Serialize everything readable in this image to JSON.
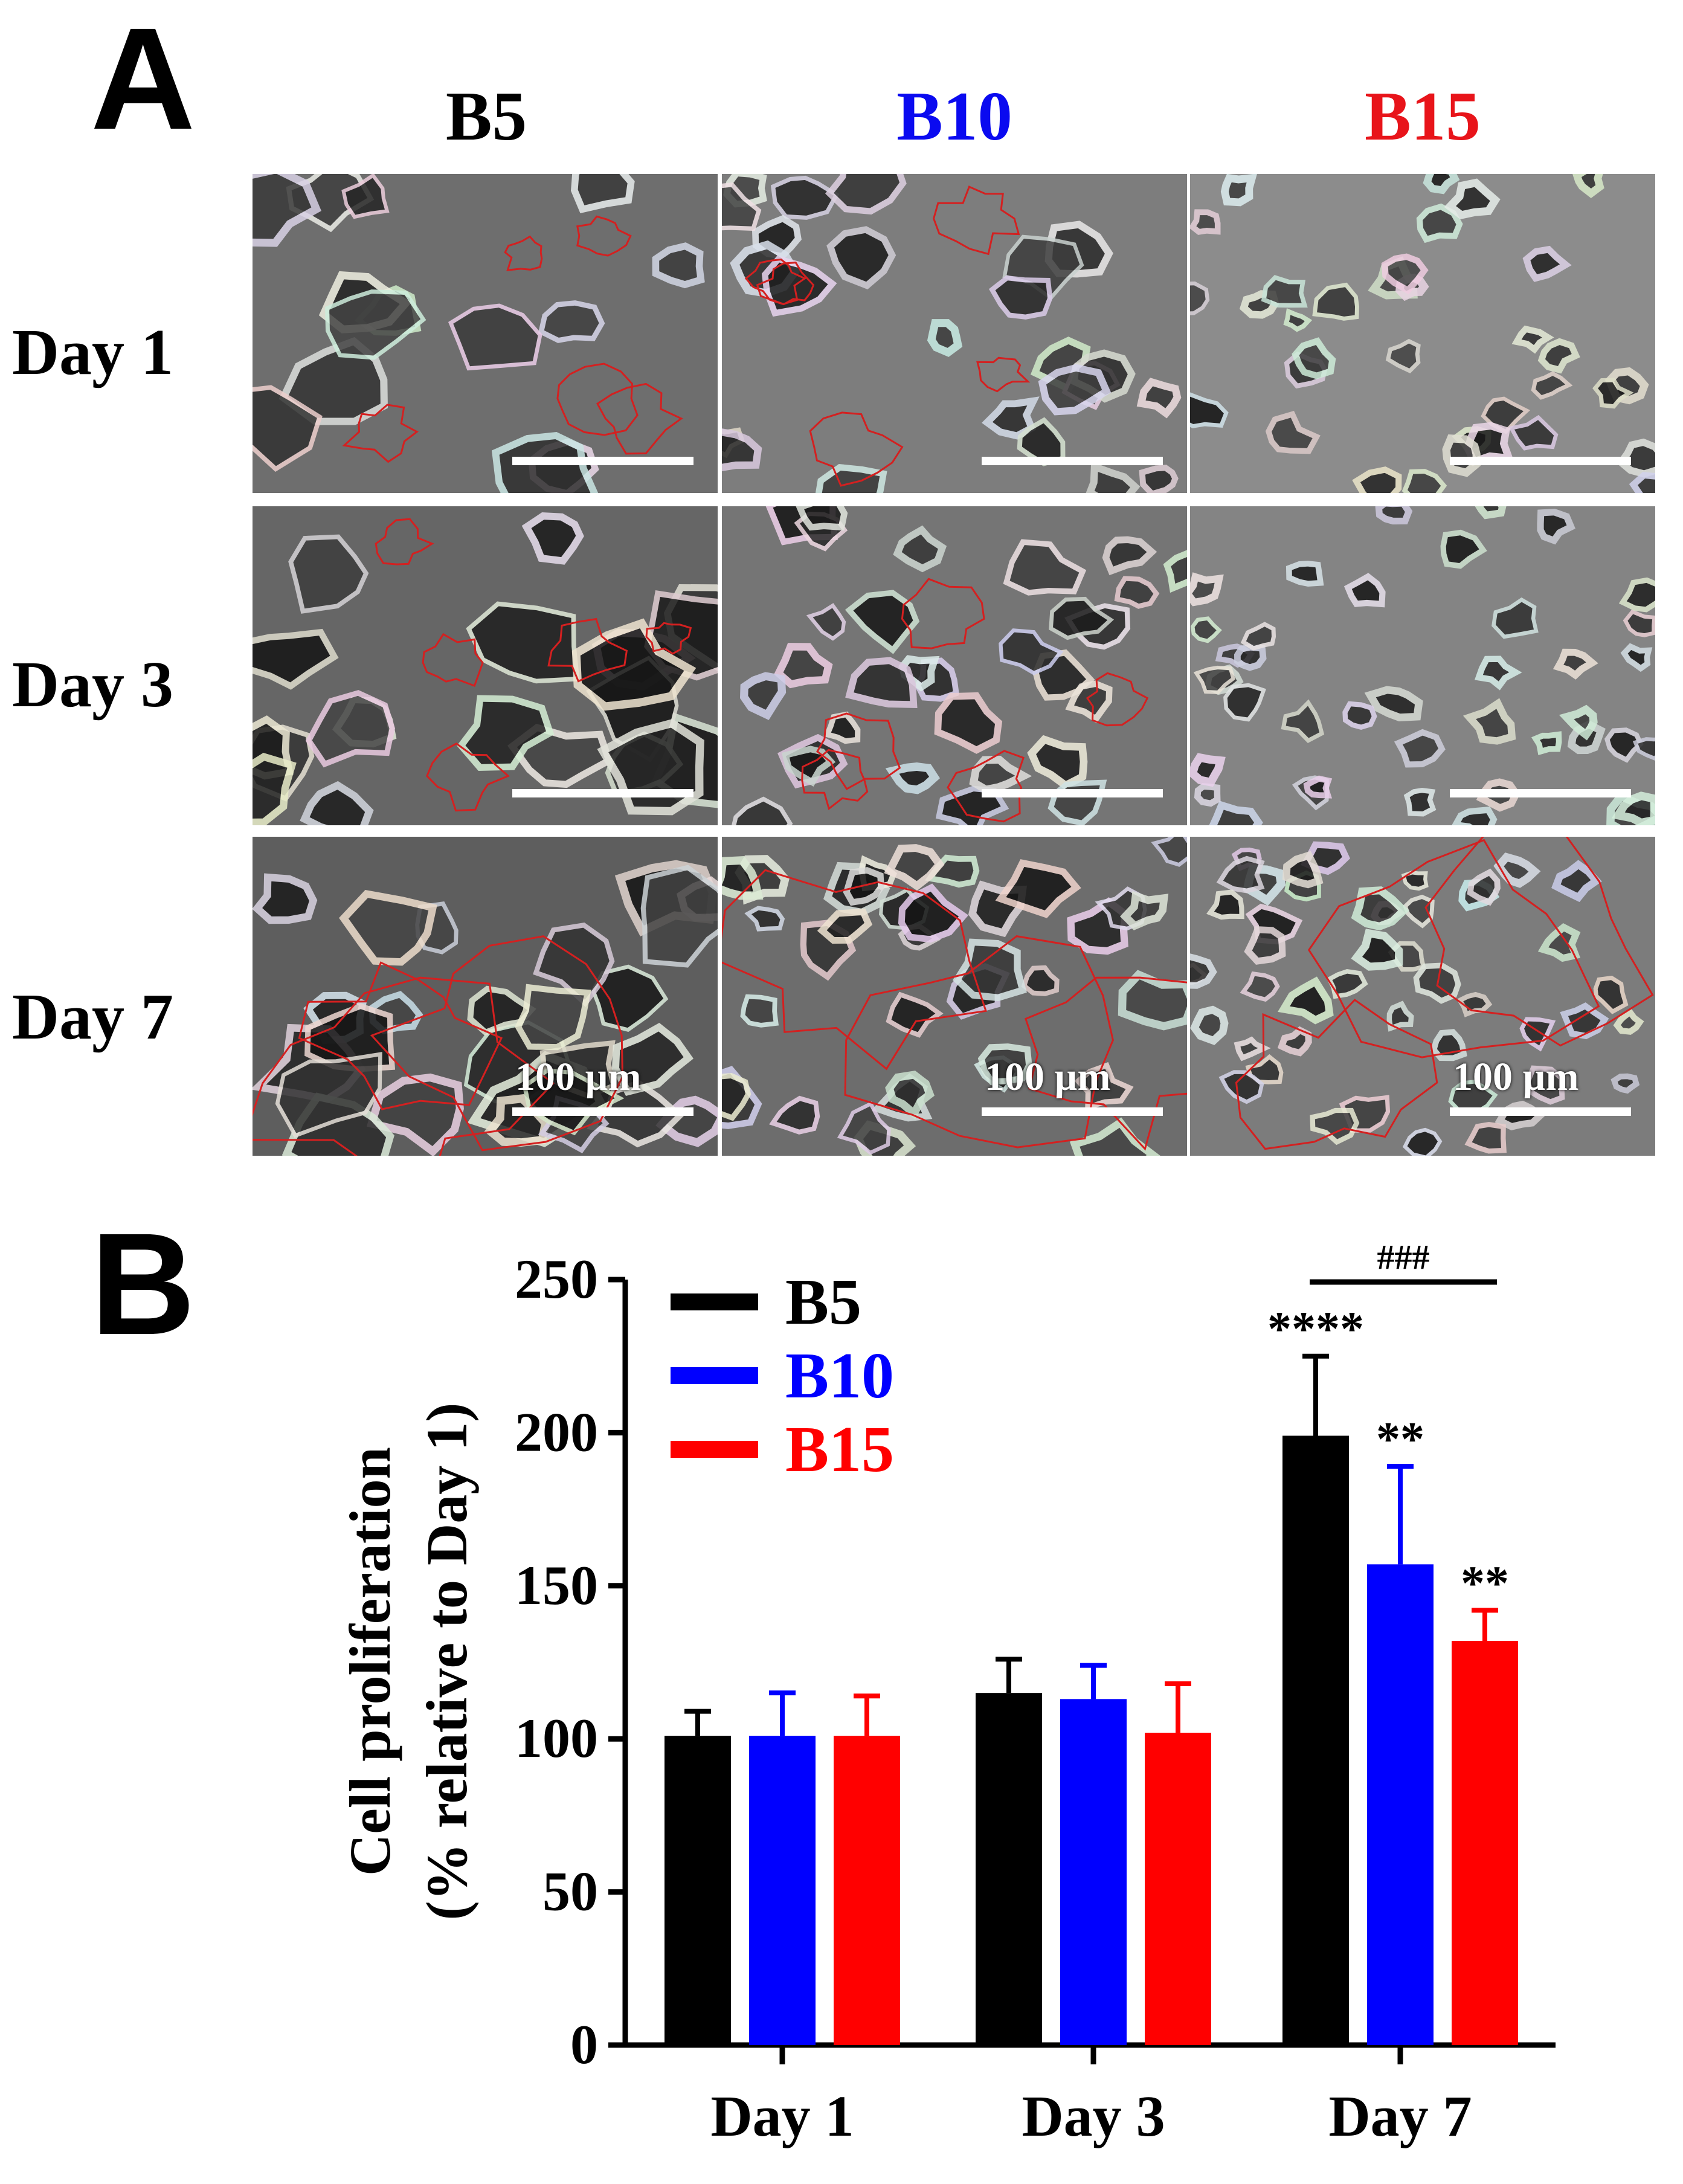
{
  "panel_a": {
    "letter": "A",
    "columns": [
      {
        "label": "B5",
        "color": "#000000"
      },
      {
        "label": "B10",
        "color": "#0a0af0"
      },
      {
        "label": "B15",
        "color": "#e8141a"
      }
    ],
    "rows": [
      {
        "label": "Day 1"
      },
      {
        "label": "Day 3"
      },
      {
        "label": "Day 7"
      }
    ],
    "scale_bar_label": "100 µm",
    "outline_color": "#d42020"
  },
  "panel_b": {
    "letter": "B"
  },
  "chart_data": {
    "type": "bar",
    "title": "",
    "ylabel_line1": "Cell proliferation",
    "ylabel_line2": "(% relative to Day 1)",
    "xlabel": "",
    "categories": [
      "Day 1",
      "Day 3",
      "Day 7"
    ],
    "ylim": [
      0,
      250
    ],
    "yticks": [
      0,
      50,
      100,
      150,
      200,
      250
    ],
    "legend_position": "top-left",
    "series": [
      {
        "name": "B5",
        "color": "#000000",
        "values": [
          101,
          115,
          199
        ],
        "errors": [
          8,
          11,
          26
        ]
      },
      {
        "name": "B10",
        "color": "#0000ff",
        "values": [
          101,
          113,
          157
        ],
        "errors": [
          14,
          11,
          32
        ]
      },
      {
        "name": "B15",
        "color": "#ff0000",
        "values": [
          101,
          102,
          132
        ],
        "errors": [
          13,
          16,
          10
        ]
      }
    ],
    "annotations": [
      {
        "category": "Day 7",
        "series": "B5",
        "text": "****"
      },
      {
        "category": "Day 7",
        "series": "B10",
        "text": "**"
      },
      {
        "category": "Day 7",
        "series": "B15",
        "text": "**"
      }
    ],
    "bracket": {
      "from_series": "B5",
      "to_series": "B15",
      "category": "Day 7",
      "text": "###"
    }
  }
}
